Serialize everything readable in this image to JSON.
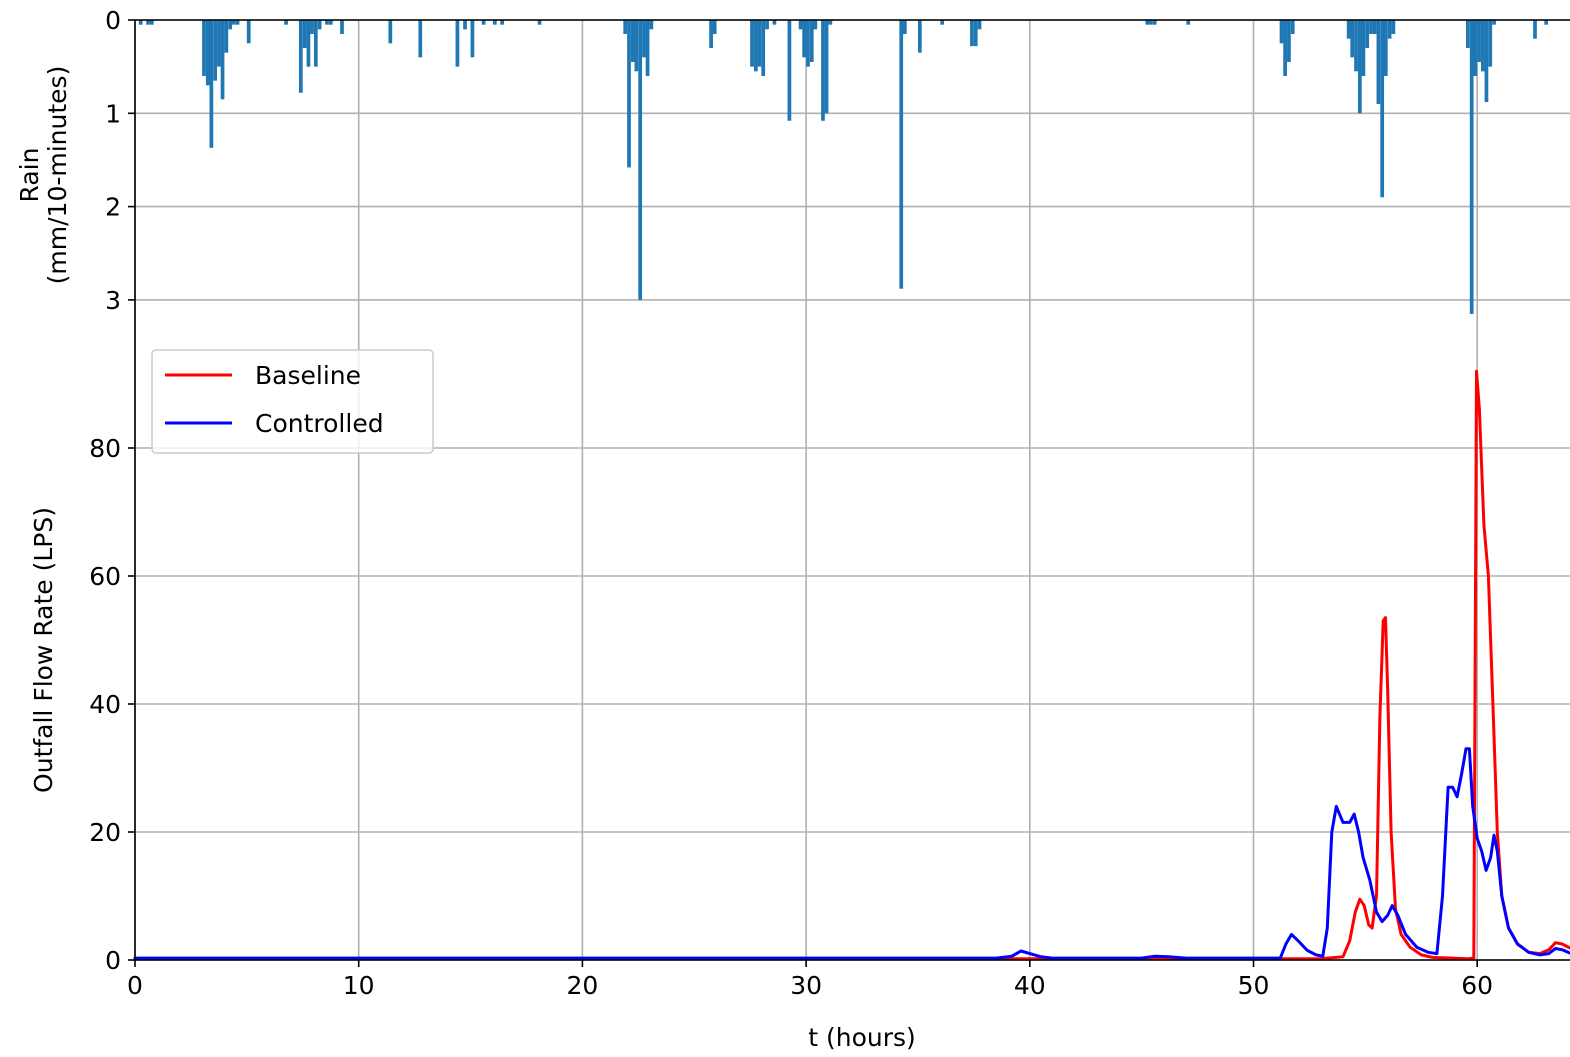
{
  "chart_data": [
    {
      "type": "bar",
      "panel": "rain",
      "ylabel_lines": [
        "Rain",
        "(mm/10-minutes)"
      ],
      "y_inverted": true,
      "ylim": [
        0,
        3.2
      ],
      "yticks": [
        0,
        1,
        2,
        3
      ],
      "xlim": [
        0,
        64.5
      ],
      "grid": true,
      "color": "#1f77b4",
      "bar_width_hours": 0.1667,
      "bars": [
        {
          "t": 0.17,
          "v": 0.05
        },
        {
          "t": 0.5,
          "v": 0.05
        },
        {
          "t": 0.67,
          "v": 0.05
        },
        {
          "t": 3.0,
          "v": 0.6
        },
        {
          "t": 3.17,
          "v": 0.7
        },
        {
          "t": 3.33,
          "v": 1.37
        },
        {
          "t": 3.5,
          "v": 0.65
        },
        {
          "t": 3.67,
          "v": 0.5
        },
        {
          "t": 3.83,
          "v": 0.85
        },
        {
          "t": 4.0,
          "v": 0.35
        },
        {
          "t": 4.17,
          "v": 0.1
        },
        {
          "t": 4.33,
          "v": 0.05
        },
        {
          "t": 4.5,
          "v": 0.05
        },
        {
          "t": 5.0,
          "v": 0.25
        },
        {
          "t": 6.67,
          "v": 0.05
        },
        {
          "t": 7.33,
          "v": 0.78
        },
        {
          "t": 7.5,
          "v": 0.3
        },
        {
          "t": 7.67,
          "v": 0.5
        },
        {
          "t": 7.83,
          "v": 0.15
        },
        {
          "t": 8.0,
          "v": 0.5
        },
        {
          "t": 8.17,
          "v": 0.1
        },
        {
          "t": 8.5,
          "v": 0.05
        },
        {
          "t": 8.67,
          "v": 0.05
        },
        {
          "t": 9.17,
          "v": 0.15
        },
        {
          "t": 11.33,
          "v": 0.25
        },
        {
          "t": 12.67,
          "v": 0.4
        },
        {
          "t": 14.33,
          "v": 0.5
        },
        {
          "t": 14.67,
          "v": 0.1
        },
        {
          "t": 15.0,
          "v": 0.4
        },
        {
          "t": 15.5,
          "v": 0.05
        },
        {
          "t": 16.0,
          "v": 0.05
        },
        {
          "t": 16.33,
          "v": 0.05
        },
        {
          "t": 18.0,
          "v": 0.05
        },
        {
          "t": 21.83,
          "v": 0.15
        },
        {
          "t": 22.0,
          "v": 1.58
        },
        {
          "t": 22.17,
          "v": 0.45
        },
        {
          "t": 22.33,
          "v": 0.55
        },
        {
          "t": 22.5,
          "v": 3.0
        },
        {
          "t": 22.67,
          "v": 0.4
        },
        {
          "t": 22.83,
          "v": 0.6
        },
        {
          "t": 23.0,
          "v": 0.1
        },
        {
          "t": 25.67,
          "v": 0.3
        },
        {
          "t": 25.83,
          "v": 0.15
        },
        {
          "t": 27.5,
          "v": 0.5
        },
        {
          "t": 27.67,
          "v": 0.55
        },
        {
          "t": 27.83,
          "v": 0.5
        },
        {
          "t": 28.0,
          "v": 0.6
        },
        {
          "t": 28.17,
          "v": 0.1
        },
        {
          "t": 28.5,
          "v": 0.05
        },
        {
          "t": 29.17,
          "v": 1.08
        },
        {
          "t": 29.67,
          "v": 0.1
        },
        {
          "t": 29.83,
          "v": 0.4
        },
        {
          "t": 30.0,
          "v": 0.5
        },
        {
          "t": 30.17,
          "v": 0.45
        },
        {
          "t": 30.33,
          "v": 0.1
        },
        {
          "t": 30.67,
          "v": 1.08
        },
        {
          "t": 30.83,
          "v": 1.0
        },
        {
          "t": 31.0,
          "v": 0.05
        },
        {
          "t": 34.17,
          "v": 2.88
        },
        {
          "t": 34.33,
          "v": 0.15
        },
        {
          "t": 35.0,
          "v": 0.35
        },
        {
          "t": 36.0,
          "v": 0.05
        },
        {
          "t": 37.33,
          "v": 0.28
        },
        {
          "t": 37.5,
          "v": 0.28
        },
        {
          "t": 37.67,
          "v": 0.1
        },
        {
          "t": 45.17,
          "v": 0.05
        },
        {
          "t": 45.33,
          "v": 0.05
        },
        {
          "t": 45.5,
          "v": 0.05
        },
        {
          "t": 47.0,
          "v": 0.05
        },
        {
          "t": 51.17,
          "v": 0.25
        },
        {
          "t": 51.33,
          "v": 0.6
        },
        {
          "t": 51.5,
          "v": 0.45
        },
        {
          "t": 51.67,
          "v": 0.15
        },
        {
          "t": 54.17,
          "v": 0.2
        },
        {
          "t": 54.33,
          "v": 0.4
        },
        {
          "t": 54.5,
          "v": 0.55
        },
        {
          "t": 54.67,
          "v": 1.0
        },
        {
          "t": 54.83,
          "v": 0.6
        },
        {
          "t": 55.0,
          "v": 0.3
        },
        {
          "t": 55.17,
          "v": 0.15
        },
        {
          "t": 55.33,
          "v": 0.15
        },
        {
          "t": 55.5,
          "v": 0.9
        },
        {
          "t": 55.67,
          "v": 1.9
        },
        {
          "t": 55.83,
          "v": 0.6
        },
        {
          "t": 56.0,
          "v": 0.2
        },
        {
          "t": 56.17,
          "v": 0.15
        },
        {
          "t": 59.5,
          "v": 0.3
        },
        {
          "t": 59.67,
          "v": 3.15
        },
        {
          "t": 59.83,
          "v": 0.6
        },
        {
          "t": 60.0,
          "v": 0.45
        },
        {
          "t": 60.17,
          "v": 0.55
        },
        {
          "t": 60.33,
          "v": 0.88
        },
        {
          "t": 60.5,
          "v": 0.5
        },
        {
          "t": 60.67,
          "v": 0.05
        },
        {
          "t": 62.5,
          "v": 0.2
        },
        {
          "t": 63.0,
          "v": 0.05
        }
      ]
    },
    {
      "type": "line",
      "panel": "flow",
      "ylabel": "Outfall Flow Rate (LPS)",
      "xlabel": "t (hours)",
      "xlim": [
        0,
        64.5
      ],
      "ylim": [
        0,
        93
      ],
      "xticks": [
        0,
        10,
        20,
        30,
        40,
        50,
        60
      ],
      "yticks": [
        0,
        20,
        40,
        60,
        80
      ],
      "grid": true,
      "legend_position": "upper-left",
      "series": [
        {
          "name": "Baseline",
          "color": "#ff0000",
          "points": [
            [
              0,
              0.2
            ],
            [
              53.0,
              0.2
            ],
            [
              54.0,
              0.5
            ],
            [
              54.3,
              3.0
            ],
            [
              54.55,
              7.5
            ],
            [
              54.75,
              9.5
            ],
            [
              54.95,
              8.5
            ],
            [
              55.15,
              5.5
            ],
            [
              55.3,
              5.0
            ],
            [
              55.5,
              10.0
            ],
            [
              55.65,
              38.0
            ],
            [
              55.8,
              53.0
            ],
            [
              55.9,
              53.5
            ],
            [
              56.0,
              42.0
            ],
            [
              56.15,
              20.0
            ],
            [
              56.35,
              8.0
            ],
            [
              56.6,
              4.0
            ],
            [
              57.0,
              2.0
            ],
            [
              57.5,
              0.8
            ],
            [
              58.0,
              0.4
            ],
            [
              59.6,
              0.2
            ],
            [
              59.85,
              0.3
            ],
            [
              59.92,
              55.0
            ],
            [
              59.97,
              92.0
            ],
            [
              60.1,
              86.0
            ],
            [
              60.3,
              68.0
            ],
            [
              60.5,
              60.0
            ],
            [
              60.7,
              40.0
            ],
            [
              60.9,
              20.0
            ],
            [
              61.1,
              10.0
            ],
            [
              61.4,
              5.0
            ],
            [
              61.8,
              2.5
            ],
            [
              62.3,
              1.2
            ],
            [
              62.8,
              1.0
            ],
            [
              63.2,
              1.6
            ],
            [
              63.5,
              2.7
            ],
            [
              63.8,
              2.5
            ],
            [
              64.2,
              1.8
            ],
            [
              64.5,
              1.5
            ]
          ]
        },
        {
          "name": "Controlled",
          "color": "#0000ff",
          "points": [
            [
              0,
              0.3
            ],
            [
              38.5,
              0.3
            ],
            [
              39.2,
              0.6
            ],
            [
              39.6,
              1.4
            ],
            [
              40.0,
              1.0
            ],
            [
              40.5,
              0.5
            ],
            [
              41.0,
              0.3
            ],
            [
              45.0,
              0.3
            ],
            [
              45.6,
              0.6
            ],
            [
              46.2,
              0.5
            ],
            [
              47.0,
              0.3
            ],
            [
              51.2,
              0.3
            ],
            [
              51.45,
              2.5
            ],
            [
              51.7,
              4.0
            ],
            [
              52.0,
              3.0
            ],
            [
              52.4,
              1.5
            ],
            [
              52.8,
              0.8
            ],
            [
              53.1,
              0.6
            ],
            [
              53.3,
              5.0
            ],
            [
              53.5,
              20.0
            ],
            [
              53.7,
              24.0
            ],
            [
              54.0,
              21.5
            ],
            [
              54.3,
              21.5
            ],
            [
              54.5,
              22.8
            ],
            [
              54.7,
              20.0
            ],
            [
              54.9,
              16.0
            ],
            [
              55.2,
              12.5
            ],
            [
              55.5,
              7.5
            ],
            [
              55.75,
              6.0
            ],
            [
              56.0,
              7.0
            ],
            [
              56.2,
              8.5
            ],
            [
              56.45,
              7.0
            ],
            [
              56.8,
              4.0
            ],
            [
              57.3,
              2.0
            ],
            [
              57.8,
              1.2
            ],
            [
              58.2,
              1.0
            ],
            [
              58.45,
              10.0
            ],
            [
              58.7,
              27.0
            ],
            [
              58.9,
              27.0
            ],
            [
              59.1,
              25.5
            ],
            [
              59.3,
              29.0
            ],
            [
              59.5,
              33.0
            ],
            [
              59.65,
              33.0
            ],
            [
              59.8,
              24.0
            ],
            [
              60.0,
              19.0
            ],
            [
              60.2,
              17.0
            ],
            [
              60.4,
              14.0
            ],
            [
              60.6,
              16.0
            ],
            [
              60.75,
              19.5
            ],
            [
              60.9,
              17.0
            ],
            [
              61.1,
              10.0
            ],
            [
              61.4,
              5.0
            ],
            [
              61.8,
              2.5
            ],
            [
              62.3,
              1.2
            ],
            [
              62.8,
              0.8
            ],
            [
              63.2,
              1.0
            ],
            [
              63.5,
              1.8
            ],
            [
              63.8,
              1.6
            ],
            [
              64.2,
              1.0
            ],
            [
              64.5,
              0.9
            ]
          ]
        }
      ]
    }
  ]
}
